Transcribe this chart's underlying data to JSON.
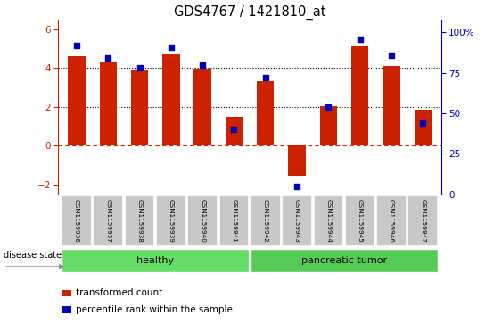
{
  "title": "GDS4767 / 1421810_at",
  "samples": [
    "GSM1159936",
    "GSM1159937",
    "GSM1159938",
    "GSM1159939",
    "GSM1159940",
    "GSM1159941",
    "GSM1159942",
    "GSM1159943",
    "GSM1159944",
    "GSM1159945",
    "GSM1159946",
    "GSM1159947"
  ],
  "bar_values": [
    4.6,
    4.35,
    3.9,
    4.75,
    3.95,
    1.5,
    3.3,
    -1.55,
    2.05,
    5.1,
    4.1,
    1.85
  ],
  "dot_values": [
    92,
    84,
    78,
    91,
    80,
    40,
    72,
    5,
    54,
    96,
    86,
    44
  ],
  "bar_color": "#CC2200",
  "dot_color": "#0000BB",
  "ylim_left": [
    -2.5,
    6.5
  ],
  "ylim_right": [
    0,
    108
  ],
  "yticks_left": [
    -2,
    0,
    2,
    4,
    6
  ],
  "yticks_right": [
    0,
    25,
    50,
    75,
    100
  ],
  "ytick_labels_right": [
    "0",
    "25",
    "50",
    "75",
    "100%"
  ],
  "disease_state_label": "disease state",
  "legend_bar_label": "transformed count",
  "legend_dot_label": "percentile rank within the sample",
  "left_color": "#CC2200",
  "right_color": "#0000BB",
  "healthy_color": "#66DD66",
  "tumor_color": "#55CC55",
  "xticklabel_bg": "#C8C8C8"
}
